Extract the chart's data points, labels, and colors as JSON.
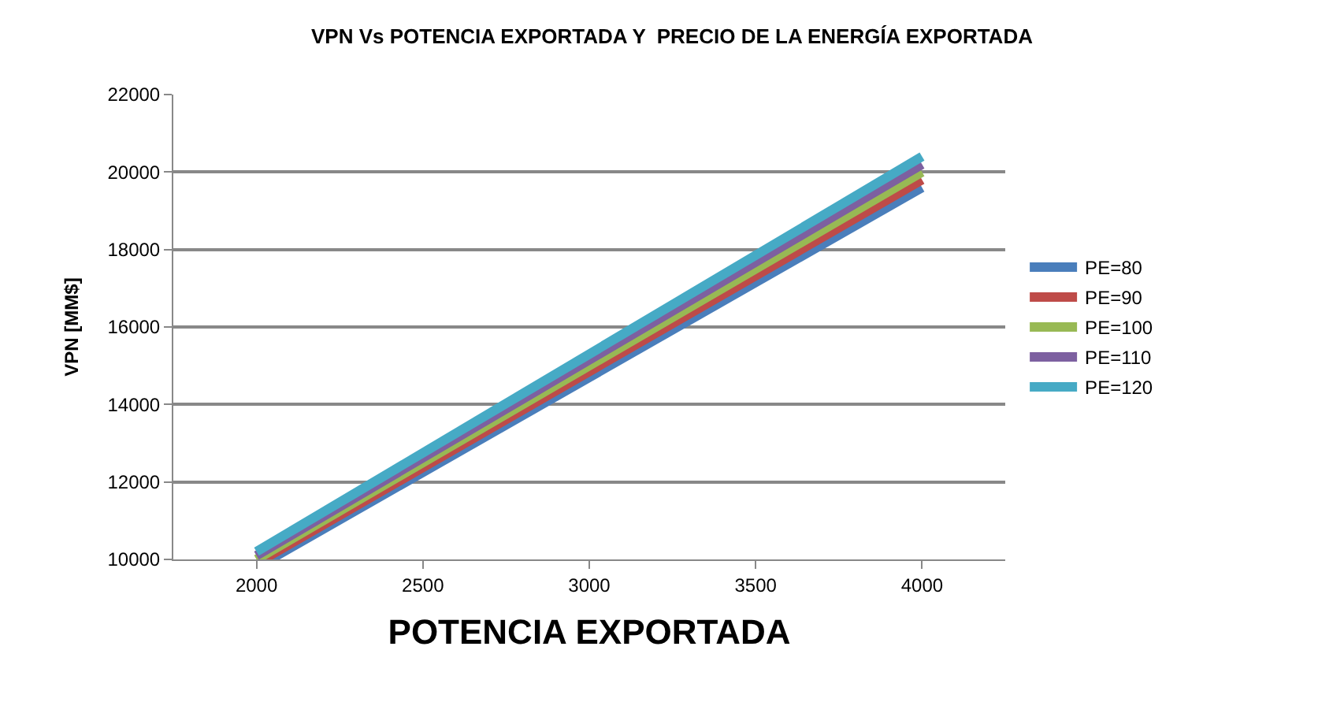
{
  "chart_data": {
    "type": "line",
    "title": "VPN Vs POTENCIA EXPORTADA Y  PRECIO DE LA ENERGÍA EXPORTADA",
    "xlabel": "POTENCIA EXPORTADA",
    "ylabel": "VPN [MM$]",
    "xlim": [
      1750,
      4250
    ],
    "xticks": [
      2000,
      2500,
      3000,
      3500,
      4000
    ],
    "ylim": [
      10000,
      22000
    ],
    "yticks": [
      10000,
      12000,
      14000,
      16000,
      18000,
      20000,
      22000
    ],
    "grid": "y",
    "legend": "right",
    "marker": "none",
    "line_style": "solid",
    "series": [
      {
        "name": "PE=80",
        "color": "#4a7ebb",
        "x": [
          2041,
          4000
        ],
        "values": [
          10000,
          19600
        ]
      },
      {
        "name": "PE=90",
        "color": "#be4b48",
        "x": [
          2020,
          4000
        ],
        "values": [
          10000,
          19800
        ]
      },
      {
        "name": "PE=100",
        "color": "#98b954",
        "x": [
          2000,
          4000
        ],
        "values": [
          10000,
          20000
        ]
      },
      {
        "name": "PE=110",
        "color": "#7d60a0",
        "x": [
          2000,
          4000
        ],
        "values": [
          10100,
          20200
        ]
      },
      {
        "name": "PE=120",
        "color": "#46aac5",
        "x": [
          2000,
          4000
        ],
        "values": [
          10200,
          20400
        ]
      }
    ]
  }
}
